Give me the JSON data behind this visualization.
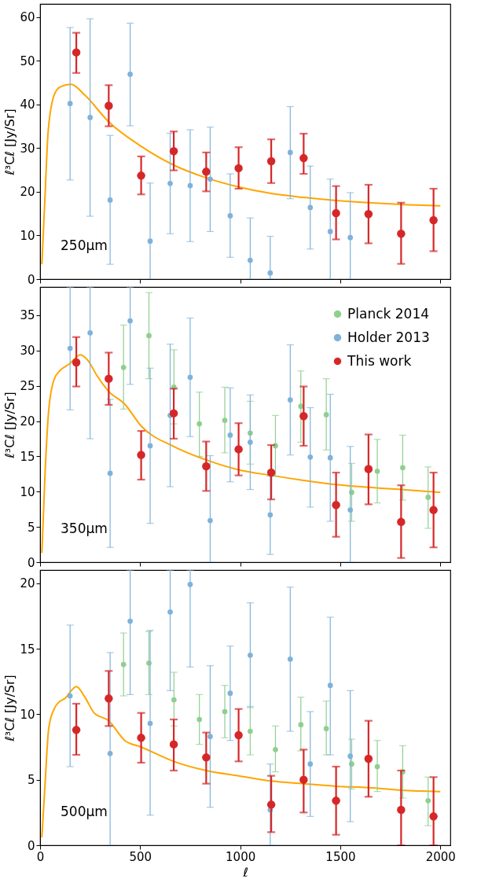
{
  "chart_data": [
    {
      "type": "scatter",
      "ylabel": "ℓ³Cℓ [Jy/Sr]",
      "annotations": [
        "250μm"
      ],
      "xlim": [
        0,
        2050
      ],
      "xticks": [
        0,
        500,
        1000,
        1500,
        2000
      ],
      "ylim": [
        0,
        63
      ],
      "yticks": [
        0,
        10,
        20,
        30,
        40,
        50,
        60
      ],
      "tick_labels": "y",
      "grid": false,
      "legend": false,
      "marker": "circle",
      "series": [
        {
          "type": "line",
          "marker": "none",
          "color": "#ffa500",
          "line_style": "solid",
          "x": [
            9,
            25,
            40,
            70,
            100,
            155,
            224,
            343,
            505,
            668,
            830,
            992,
            1155,
            1317,
            1479,
            1641,
            1804,
            2000
          ],
          "values": [
            3.4,
            19.3,
            33.6,
            42.1,
            44.0,
            44.6,
            42.1,
            36.0,
            30.4,
            26.1,
            23.2,
            21.1,
            19.6,
            18.7,
            18.0,
            17.5,
            17.1,
            16.8
          ]
        },
        {
          "color": "#7fb2d9",
          "x": [
            150,
            250,
            350,
            450,
            550,
            650,
            750,
            850,
            950,
            1050,
            1150,
            1250,
            1350,
            1450,
            1550
          ],
          "values": [
            40.2,
            37.0,
            18.1,
            46.9,
            8.7,
            21.9,
            21.4,
            22.9,
            14.5,
            4.3,
            1.4,
            29.0,
            16.4,
            10.9,
            9.5
          ],
          "errors": [
            [
              22.7,
              57.6
            ],
            [
              14.4,
              59.6
            ],
            [
              3.4,
              32.9
            ],
            [
              35.1,
              58.6
            ],
            [
              0,
              22.0
            ],
            [
              10.4,
              33.4
            ],
            [
              8.6,
              34.2
            ],
            [
              10.9,
              34.8
            ],
            [
              5.0,
              24.1
            ],
            [
              0,
              14.0
            ],
            [
              0,
              9.8
            ],
            [
              18.4,
              39.5
            ],
            [
              6.9,
              25.9
            ],
            [
              0,
              22.9
            ],
            [
              0,
              19.8
            ]
          ]
        },
        {
          "color": "#d62728",
          "x": [
            181,
            343,
            505,
            668,
            830,
            992,
            1155,
            1317,
            1479,
            1641,
            1804,
            1966
          ],
          "values": [
            51.9,
            39.7,
            23.7,
            29.3,
            24.6,
            25.4,
            27.0,
            27.7,
            15.1,
            14.9,
            10.4,
            13.5
          ],
          "errors": [
            [
              47.2,
              56.4
            ],
            [
              35.0,
              44.4
            ],
            [
              19.4,
              28.1
            ],
            [
              24.9,
              33.8
            ],
            [
              20.1,
              29.0
            ],
            [
              20.7,
              30.2
            ],
            [
              22.0,
              32.0
            ],
            [
              24.1,
              33.3
            ],
            [
              9.1,
              21.3
            ],
            [
              8.2,
              21.6
            ],
            [
              3.5,
              17.5
            ],
            [
              6.4,
              20.7
            ]
          ]
        }
      ]
    },
    {
      "type": "scatter",
      "ylabel": "ℓ³Cℓ [Jy/Sr]",
      "annotations": [
        "350μm"
      ],
      "xlim": [
        0,
        2050
      ],
      "xticks": [
        0,
        500,
        1000,
        1500,
        2000
      ],
      "ylim": [
        0,
        39
      ],
      "yticks": [
        0,
        5,
        10,
        15,
        20,
        25,
        30,
        35
      ],
      "tick_labels": "y",
      "grid": false,
      "legend": "top right",
      "marker": "circle",
      "series": [
        {
          "type": "line",
          "marker": "none",
          "color": "#ffa500",
          "line_style": "solid",
          "x": [
            9,
            25,
            43,
            70,
            101,
            147,
            201,
            239,
            285,
            343,
            423,
            505,
            668,
            830,
            992,
            1155,
            1317,
            1479,
            1641,
            1804,
            2000
          ],
          "values": [
            1.3,
            12.7,
            21.5,
            25.9,
            27.2,
            28.1,
            29.4,
            28.6,
            26.4,
            24.2,
            22.4,
            19.3,
            16.4,
            14.5,
            13.1,
            12.3,
            11.6,
            11.0,
            10.6,
            10.3,
            9.9
          ]
        },
        {
          "name": "Planck 2014",
          "color": "#8fcf8f",
          "x": [
            417,
            544,
            669,
            796,
            923,
            1050,
            1176,
            1303,
            1430,
            1557,
            1685,
            1812,
            1939
          ],
          "values": [
            27.6,
            32.1,
            24.8,
            19.6,
            20.1,
            18.3,
            16.5,
            22.1,
            20.9,
            9.9,
            12.9,
            13.4,
            9.2
          ],
          "errors": [
            [
              21.7,
              33.6
            ],
            [
              26.0,
              38.2
            ],
            [
              19.6,
              30.1
            ],
            [
              15.0,
              24.1
            ],
            [
              15.5,
              24.8
            ],
            [
              13.9,
              22.8
            ],
            [
              12.2,
              20.8
            ],
            [
              17.0,
              27.1
            ],
            [
              15.9,
              26.0
            ],
            [
              5.8,
              14.0
            ],
            [
              8.4,
              17.4
            ],
            [
              8.8,
              18.0
            ],
            [
              4.8,
              13.5
            ]
          ]
        },
        {
          "name": "Holder 2013",
          "color": "#7fb2d9",
          "x": [
            150,
            250,
            350,
            450,
            550,
            650,
            750,
            850,
            950,
            1050,
            1150,
            1250,
            1350,
            1450,
            1550
          ],
          "values": [
            30.3,
            32.5,
            12.6,
            34.2,
            16.5,
            20.8,
            26.2,
            5.9,
            18.0,
            17.0,
            6.7,
            23.0,
            14.9,
            14.8,
            7.4
          ],
          "errors": [
            [
              21.6,
              39
            ],
            [
              17.5,
              39
            ],
            [
              2.1,
              23.1
            ],
            [
              25.2,
              39
            ],
            [
              5.5,
              27.5
            ],
            [
              10.7,
              30.9
            ],
            [
              17.8,
              34.6
            ],
            [
              0,
              15.1
            ],
            [
              11.4,
              24.7
            ],
            [
              10.3,
              23.7
            ],
            [
              1.1,
              12.2
            ],
            [
              15.2,
              30.8
            ],
            [
              7.8,
              21.9
            ],
            [
              5.8,
              23.8
            ],
            [
              0,
              16.4
            ]
          ]
        },
        {
          "name": "This work",
          "color": "#d62728",
          "x": [
            181,
            343,
            505,
            668,
            830,
            992,
            1155,
            1317,
            1479,
            1641,
            1804,
            1966
          ],
          "values": [
            28.3,
            26.0,
            15.2,
            21.1,
            13.6,
            16.0,
            12.7,
            20.7,
            8.1,
            13.2,
            5.7,
            7.4
          ],
          "errors": [
            [
              24.9,
              31.9
            ],
            [
              22.3,
              29.7
            ],
            [
              11.7,
              18.6
            ],
            [
              17.5,
              24.6
            ],
            [
              10.1,
              17.1
            ],
            [
              12.3,
              19.7
            ],
            [
              8.9,
              16.6
            ],
            [
              16.5,
              24.9
            ],
            [
              3.6,
              12.7
            ],
            [
              8.2,
              18.1
            ],
            [
              0.6,
              10.9
            ],
            [
              2.1,
              12.7
            ]
          ]
        }
      ]
    },
    {
      "type": "scatter",
      "xlabel": "ℓ",
      "ylabel": "ℓ³Cℓ [Jy/Sr]",
      "annotations": [
        "500μm"
      ],
      "xlim": [
        0,
        2050
      ],
      "xticks": [
        0,
        500,
        1000,
        1500,
        2000
      ],
      "ylim": [
        0,
        21
      ],
      "yticks": [
        0,
        5,
        10,
        15,
        20
      ],
      "grid": false,
      "legend": false,
      "marker": "circle",
      "series": [
        {
          "type": "line",
          "marker": "none",
          "color": "#ffa500",
          "line_style": "solid",
          "x": [
            9,
            25,
            43,
            70,
            93,
            124,
            181,
            224,
            270,
            343,
            423,
            505,
            668,
            830,
            992,
            1155,
            1317,
            1479,
            1641,
            1804,
            2000
          ],
          "values": [
            0.6,
            4.7,
            8.9,
            10.4,
            10.9,
            11.2,
            12.1,
            11.3,
            10.1,
            9.5,
            8.0,
            7.5,
            6.4,
            5.7,
            5.3,
            4.9,
            4.7,
            4.5,
            4.4,
            4.2,
            4.1
          ]
        },
        {
          "color": "#8fcf8f",
          "x": [
            417,
            544,
            669,
            796,
            923,
            1050,
            1176,
            1303,
            1430,
            1557,
            1685,
            1812,
            1939
          ],
          "values": [
            13.8,
            13.9,
            11.1,
            9.6,
            10.2,
            8.7,
            7.3,
            9.2,
            8.9,
            6.2,
            6.0,
            5.6,
            3.4
          ],
          "errors": [
            [
              11.4,
              16.2
            ],
            [
              11.5,
              16.3
            ],
            [
              9.1,
              13.2
            ],
            [
              7.7,
              11.5
            ],
            [
              8.2,
              12.2
            ],
            [
              6.9,
              10.6
            ],
            [
              5.6,
              9.1
            ],
            [
              7.2,
              11.3
            ],
            [
              6.9,
              11.0
            ],
            [
              4.3,
              8.1
            ],
            [
              4.1,
              8.0
            ],
            [
              3.6,
              7.6
            ],
            [
              1.5,
              5.2
            ]
          ]
        },
        {
          "color": "#7fb2d9",
          "x": [
            150,
            250,
            350,
            450,
            550,
            650,
            750,
            850,
            950,
            1050,
            1150,
            1250,
            1350,
            1450,
            1550
          ],
          "values": [
            11.4,
            null,
            7.0,
            17.1,
            9.3,
            17.8,
            19.9,
            8.3,
            11.6,
            14.5,
            2.7,
            14.2,
            6.2,
            12.2,
            6.8
          ],
          "errors": [
            [
              6.0,
              16.8
            ],
            null,
            [
              0,
              14.7
            ],
            [
              11.5,
              21
            ],
            [
              2.3,
              16.4
            ],
            [
              11.8,
              21
            ],
            [
              13.6,
              21
            ],
            [
              2.9,
              13.7
            ],
            [
              8.0,
              15.2
            ],
            [
              10.5,
              18.5
            ],
            [
              0,
              6.2
            ],
            [
              8.7,
              19.7
            ],
            [
              2.2,
              10.2
            ],
            [
              6.9,
              17.4
            ],
            [
              1.8,
              11.8
            ]
          ]
        },
        {
          "color": "#d62728",
          "x": [
            181,
            343,
            505,
            668,
            830,
            992,
            1155,
            1317,
            1479,
            1641,
            1804,
            1966
          ],
          "values": [
            8.8,
            11.2,
            8.2,
            7.7,
            6.7,
            8.4,
            3.1,
            5.0,
            3.4,
            6.6,
            2.7,
            2.2
          ],
          "errors": [
            [
              6.9,
              10.8
            ],
            [
              9.1,
              13.3
            ],
            [
              6.3,
              10.1
            ],
            [
              5.7,
              9.6
            ],
            [
              4.7,
              8.6
            ],
            [
              6.4,
              10.4
            ],
            [
              1.0,
              5.3
            ],
            [
              2.5,
              7.3
            ],
            [
              0.8,
              6.0
            ],
            [
              3.7,
              9.5
            ],
            [
              0,
              5.7
            ],
            [
              0,
              5.2
            ]
          ]
        }
      ]
    }
  ]
}
